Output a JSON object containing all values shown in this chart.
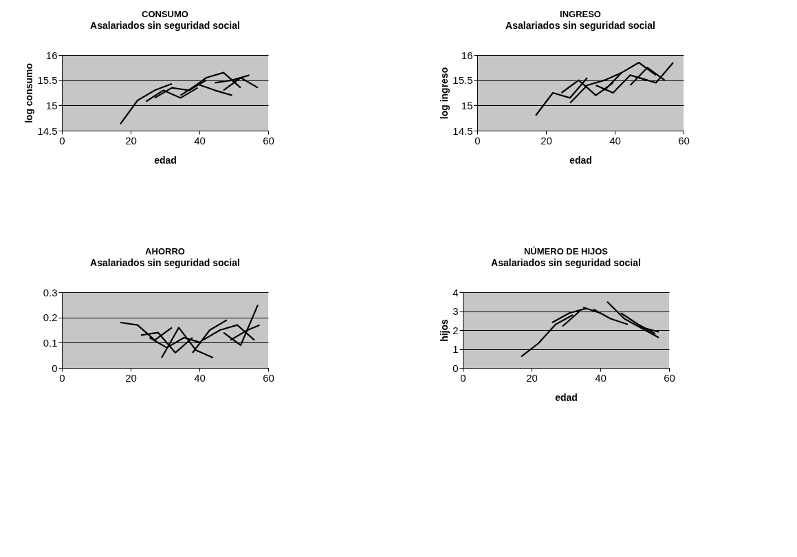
{
  "chart_data": [
    {
      "type": "line",
      "title": "CONSUMO",
      "subtitle": "Asalariados sin seguridad social",
      "xlabel": "edad",
      "ylabel": "log consumo",
      "xlim": [
        0,
        60
      ],
      "xticks": [
        0,
        20,
        40,
        60
      ],
      "ylim": [
        14.5,
        16
      ],
      "yticks": [
        14.5,
        15,
        15.5,
        16
      ],
      "grid": "y",
      "series": [
        {
          "color": "#000000",
          "x": [
            17,
            22,
            27,
            32
          ],
          "values": [
            14.63,
            15.1,
            15.3,
            15.43
          ]
        },
        {
          "color": "#000000",
          "x": [
            24.5,
            29.5,
            34.5,
            39.5
          ],
          "values": [
            15.08,
            15.3,
            15.15,
            15.35
          ]
        },
        {
          "color": "#000000",
          "x": [
            27,
            32,
            37,
            42
          ],
          "values": [
            15.15,
            15.35,
            15.3,
            15.5
          ]
        },
        {
          "color": "#000000",
          "x": [
            34.5,
            39.5,
            44.5,
            49.5
          ],
          "values": [
            15.2,
            15.42,
            15.3,
            15.2
          ]
        },
        {
          "color": "#000000",
          "x": [
            37,
            42,
            47,
            52
          ],
          "values": [
            15.3,
            15.55,
            15.65,
            15.35
          ]
        },
        {
          "color": "#000000",
          "x": [
            44.5,
            49.5,
            54.5
          ],
          "values": [
            15.45,
            15.5,
            15.6
          ]
        },
        {
          "color": "#000000",
          "x": [
            47,
            52,
            57
          ],
          "values": [
            15.3,
            15.55,
            15.35
          ]
        }
      ]
    },
    {
      "type": "line",
      "title": "INGRESO",
      "subtitle": "Asalariados sin seguridad social",
      "xlabel": "edad",
      "ylabel": "log ingreso",
      "xlim": [
        0,
        60
      ],
      "xticks": [
        0,
        20,
        40,
        60
      ],
      "ylim": [
        14.5,
        16
      ],
      "yticks": [
        14.5,
        15,
        15.5,
        16
      ],
      "grid": "y",
      "series": [
        {
          "color": "#000000",
          "x": [
            17,
            22,
            27,
            32
          ],
          "values": [
            14.8,
            15.25,
            15.15,
            15.55
          ]
        },
        {
          "color": "#000000",
          "x": [
            24.5,
            29.5,
            34.5,
            39.5
          ],
          "values": [
            15.25,
            15.5,
            15.2,
            15.45
          ]
        },
        {
          "color": "#000000",
          "x": [
            27,
            32,
            37,
            42
          ],
          "values": [
            15.05,
            15.4,
            15.5,
            15.65
          ]
        },
        {
          "color": "#000000",
          "x": [
            34.5,
            39.5,
            44.5,
            49.5
          ],
          "values": [
            15.4,
            15.25,
            15.6,
            15.5
          ]
        },
        {
          "color": "#000000",
          "x": [
            37,
            42,
            47,
            52
          ],
          "values": [
            15.3,
            15.65,
            15.85,
            15.6
          ]
        },
        {
          "color": "#000000",
          "x": [
            44.5,
            49.5,
            54.5
          ],
          "values": [
            15.4,
            15.75,
            15.5
          ]
        },
        {
          "color": "#000000",
          "x": [
            47,
            52,
            57
          ],
          "values": [
            15.55,
            15.45,
            15.85
          ]
        }
      ]
    },
    {
      "type": "line",
      "title": "AHORRO",
      "subtitle": "Asalariados sin seguridad social",
      "xlim": [
        0,
        60
      ],
      "xticks": [
        0,
        20,
        40,
        60
      ],
      "ylim": [
        0,
        0.3
      ],
      "yticks": [
        0,
        0.1,
        0.2,
        0.3
      ],
      "grid": "y",
      "series": [
        {
          "color": "#000000",
          "x": [
            17,
            22,
            27,
            32
          ],
          "values": [
            0.18,
            0.17,
            0.11,
            0.16
          ]
        },
        {
          "color": "#000000",
          "x": [
            23,
            28,
            33,
            38
          ],
          "values": [
            0.13,
            0.14,
            0.06,
            0.12
          ]
        },
        {
          "color": "#000000",
          "x": [
            25.5,
            30.5,
            35.5,
            40.5
          ],
          "values": [
            0.12,
            0.08,
            0.12,
            0.1
          ]
        },
        {
          "color": "#000000",
          "x": [
            29,
            34,
            39,
            44
          ],
          "values": [
            0.04,
            0.16,
            0.07,
            0.04
          ]
        },
        {
          "color": "#000000",
          "x": [
            38,
            43,
            48
          ],
          "values": [
            0.06,
            0.15,
            0.19
          ]
        },
        {
          "color": "#000000",
          "x": [
            41,
            46,
            51,
            56
          ],
          "values": [
            0.11,
            0.15,
            0.17,
            0.11
          ]
        },
        {
          "color": "#000000",
          "x": [
            47,
            52,
            57
          ],
          "values": [
            0.14,
            0.09,
            0.25
          ]
        },
        {
          "color": "#000000",
          "x": [
            49,
            54,
            57.5
          ],
          "values": [
            0.11,
            0.15,
            0.17
          ]
        }
      ]
    },
    {
      "type": "line",
      "title": "NÚMERO DE HIJOS",
      "subtitle": "Asalariados sin seguridad social",
      "xlabel": "edad",
      "ylabel": "hijos",
      "xlim": [
        0,
        60
      ],
      "xticks": [
        0,
        20,
        40,
        60
      ],
      "ylim": [
        0,
        4
      ],
      "yticks": [
        0,
        1,
        2,
        3,
        4
      ],
      "grid": "y",
      "series": [
        {
          "color": "#000000",
          "x": [
            17,
            22,
            27,
            32
          ],
          "values": [
            0.6,
            1.3,
            2.3,
            2.8
          ]
        },
        {
          "color": "#000000",
          "x": [
            26,
            31,
            36
          ],
          "values": [
            2.4,
            2.9,
            3.15
          ]
        },
        {
          "color": "#000000",
          "x": [
            29,
            34
          ],
          "values": [
            2.2,
            3
          ]
        },
        {
          "color": "#000000",
          "x": [
            35,
            40
          ],
          "values": [
            3.2,
            2.9
          ]
        },
        {
          "color": "#000000",
          "x": [
            38,
            43,
            48
          ],
          "values": [
            3.1,
            2.6,
            2.3
          ]
        },
        {
          "color": "#000000",
          "x": [
            42,
            47,
            52,
            57
          ],
          "values": [
            3.5,
            2.6,
            2.1,
            1.6
          ]
        },
        {
          "color": "#000000",
          "x": [
            46,
            51,
            56
          ],
          "values": [
            2.9,
            2.3,
            1.8
          ]
        },
        {
          "color": "#000000",
          "x": [
            51,
            57
          ],
          "values": [
            2.2,
            1.9
          ]
        }
      ]
    }
  ]
}
